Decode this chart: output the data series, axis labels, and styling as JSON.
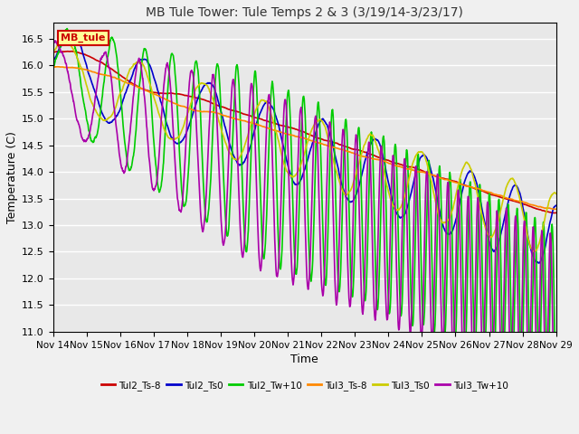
{
  "title": "MB Tule Tower: Tule Temps 2 & 3 (3/19/14-3/23/17)",
  "xlabel": "Time",
  "ylabel": "Temperature (C)",
  "ylim": [
    11.0,
    16.8
  ],
  "yticks": [
    11.0,
    11.5,
    12.0,
    12.5,
    13.0,
    13.5,
    14.0,
    14.5,
    15.0,
    15.5,
    16.0,
    16.5
  ],
  "xtick_labels": [
    "Nov 14",
    "Nov 15",
    "Nov 16",
    "Nov 17",
    "Nov 18",
    "Nov 19",
    "Nov 20",
    "Nov 21",
    "Nov 22",
    "Nov 23",
    "Nov 24",
    "Nov 25",
    "Nov 26",
    "Nov 27",
    "Nov 28",
    "Nov 29"
  ],
  "background_color": "#f0f0f0",
  "plot_bg_color": "#e8e8e8",
  "legend_label": "MB_tule",
  "legend_bg": "#ffff99",
  "legend_border": "#cc0000",
  "series": [
    {
      "name": "Tul2_Ts-8",
      "color": "#cc0000",
      "lw": 1.2
    },
    {
      "name": "Tul2_Ts0",
      "color": "#0000cc",
      "lw": 1.2
    },
    {
      "name": "Tul2_Tw+10",
      "color": "#00cc00",
      "lw": 1.2
    },
    {
      "name": "Tul3_Ts-8",
      "color": "#ff8800",
      "lw": 1.2
    },
    {
      "name": "Tul3_Ts0",
      "color": "#cccc00",
      "lw": 1.2
    },
    {
      "name": "Tul3_Tw+10",
      "color": "#aa00aa",
      "lw": 1.2
    }
  ]
}
